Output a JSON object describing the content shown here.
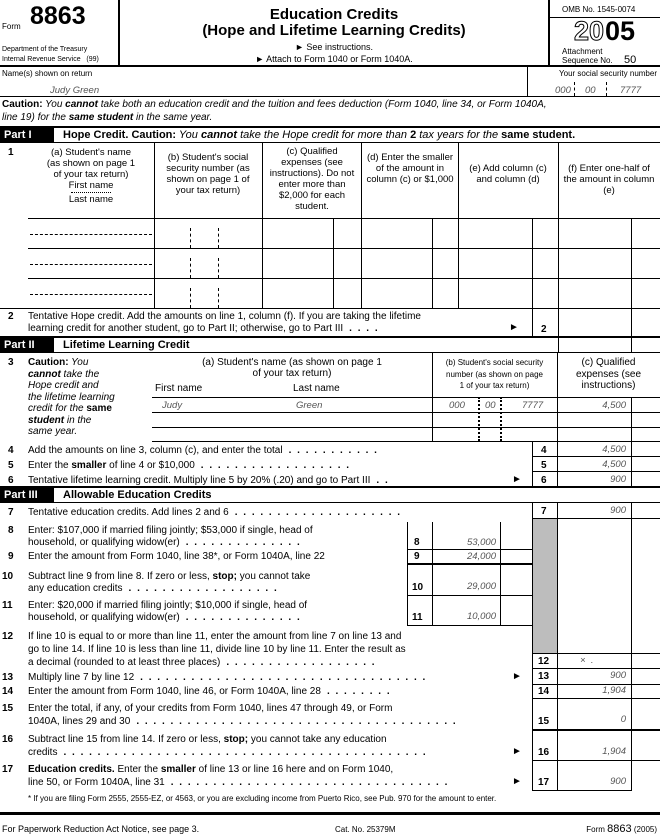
{
  "header": {
    "form_label": "Form",
    "form_number": "8863",
    "dept": "Department of the Treasury",
    "irs": "Internal Revenue Service   (99)",
    "title": "Education Credits",
    "subtitle": "(Hope and Lifetime Learning Credits)",
    "see_instructions": "► See instructions.",
    "attach": "► Attach to Form 1040 or Form 1040A.",
    "omb": "OMB No. 1545-0074",
    "year_outline": "20",
    "year_bold": "05",
    "attachment": "Attachment",
    "sequence": "Sequence No.",
    "sequence_num": "50"
  },
  "name_row": {
    "label": "Name(s) shown on return",
    "value": "Judy Green",
    "ssn_label": "Your social security number",
    "ssn": [
      "000",
      "00",
      "7777"
    ]
  },
  "caution": {
    "bold": "Caution:",
    "t1": " You ",
    "b1": "cannot",
    "t2": " take both an education credit and the tuition and fees deduction (Form 1040, line 34, or Form 1040A,",
    "t3": "line 19) for the ",
    "b2": "same student",
    "t4": " in the same year."
  },
  "part1": {
    "label": "Part I",
    "title": "Hope Credit. Caution:",
    "t1": " You ",
    "b1": "cannot",
    "t2": " take the Hope credit for more than ",
    "b2": "2",
    "t3": " tax years for the ",
    "b3": "same student."
  },
  "line1": {
    "num": "1",
    "col_a": [
      "(a) Student's name",
      "(as shown on page 1",
      "of your tax return)",
      "First name",
      "Last name"
    ],
    "col_b": "(b) Student's social security number (as shown on page 1 of your tax return)",
    "col_c": "(c) Qualified expenses (see instructions). Do not enter more than $2,000 for each student.",
    "col_d": "(d) Enter the smaller of the amount in column (c) or $1,000",
    "col_e": "(e) Add column (c) and column (d)",
    "col_f": "(f) Enter one-half of the amount in column (e)",
    "rows": [
      {},
      {},
      {}
    ]
  },
  "line2": {
    "num": "2",
    "text1": "Tentative Hope credit. Add the amounts on line 1, column (f). If you are taking the lifetime",
    "text2": "learning credit for another student, go to Part II; otherwise, go to Part III",
    "box": "2",
    "value": ""
  },
  "part2": {
    "label": "Part II",
    "title": "Lifetime Learning Credit"
  },
  "line3": {
    "num": "3",
    "caution": [
      {
        "b": "Caution:",
        "t": " You"
      },
      {
        "b": "cannot",
        "t": " take the"
      },
      {
        "b": "",
        "t": "Hope credit and"
      },
      {
        "b": "",
        "t": "the lifetime learning"
      },
      {
        "b": "",
        "t": "credit for the ",
        "b2": "same"
      },
      {
        "b": "student",
        "t": " in the"
      },
      {
        "b": "",
        "t": "same year."
      }
    ],
    "col_a1": "(a) Student's name (as shown on page 1",
    "col_a2": "of your tax return)",
    "first_name": "First name",
    "last_name": "Last name",
    "col_b": [
      "(b) Student's social security",
      "number (as shown on page",
      "1 of your tax return)"
    ],
    "col_c": [
      "(c) Qualified",
      "expenses (see",
      "instructions)"
    ],
    "rows": [
      {
        "first": "Judy",
        "last": "Green",
        "ssn": [
          "000",
          "00",
          "7777"
        ],
        "expenses": "4,500"
      },
      {
        "first": "",
        "last": "",
        "ssn": [
          "",
          "",
          ""
        ],
        "expenses": ""
      },
      {
        "first": "",
        "last": "",
        "ssn": [
          "",
          "",
          ""
        ],
        "expenses": ""
      }
    ]
  },
  "lines_4_6": [
    {
      "num": "4",
      "pre": "Add the amounts on line 3, column (c), and enter the total",
      "bold": "",
      "post": "",
      "dots": ". . . . . . . . . . .",
      "arrow": "",
      "box": "4",
      "value": "4,500"
    },
    {
      "num": "5",
      "pre": "Enter the ",
      "bold": "smaller",
      "post": " of line 4 or $10,000",
      "dots": ". . . . . . . . . . . . . . . . . .",
      "arrow": "",
      "box": "5",
      "value": "4,500"
    },
    {
      "num": "6",
      "pre": "Tentative lifetime learning credit. Multiply line 5 by 20% (.20) and go to Part III",
      "bold": "",
      "post": "",
      "dots": ". .",
      "arrow": "►",
      "box": "6",
      "value": "900"
    }
  ],
  "part3": {
    "label": "Part III",
    "title": "Allowable Education Credits"
  },
  "line7": {
    "num": "7",
    "text": "Tentative education credits. Add lines 2 and 6",
    "dots": ". . . . . . . . . . . . . . . . . . . .",
    "box": "7",
    "value": "900"
  },
  "line8": {
    "num": "8",
    "text1": "Enter: $107,000 if married filing jointly; $53,000 if single, head of",
    "text2": "household, or qualifying widow(er)",
    "dots": ". . . . . . . . . . . . . .",
    "box": "8",
    "value": "53,000"
  },
  "line9": {
    "num": "9",
    "text": "Enter the amount from Form 1040, line 38*, or Form 1040A, line 22",
    "box": "9",
    "value": "24,000"
  },
  "line10": {
    "num": "10",
    "pre": "Subtract line 9 from line 8. If zero or less, ",
    "bold": "stop;",
    "post": " you cannot take",
    "text2": "any education credits",
    "dots": ". . . . . . . . . . . . . . . . . .",
    "box": "10",
    "value": "29,000"
  },
  "line11": {
    "num": "11",
    "text1": "Enter: $20,000 if married filing jointly; $10,000 if single, head of",
    "text2": "household, or qualifying widow(er)",
    "dots": ". . . . . . . . . . . . . .",
    "box": "11",
    "value": "10,000"
  },
  "line12": {
    "num": "12",
    "text1": "If line 10 is equal to or more than line 11, enter the amount from line 7 on line 13 and",
    "text2": "go to line 14. If line 10 is less than line 11, divide line 10 by line 11. Enter the result as",
    "text3": "a decimal (rounded to at least three places)",
    "dots": ". . . . . . . . . . . . . . . . . .",
    "box": "12",
    "value": "×  ."
  },
  "line13": {
    "num": "13",
    "text": "Multiply line 7 by line 12",
    "dots": ". . . . . . . . . . . . . . . . . . . . . . . . . . . . . . . . . .",
    "arrow": "►",
    "box": "13",
    "value": "900"
  },
  "line14": {
    "num": "14",
    "text": "Enter the amount from Form 1040, line 46, or Form 1040A, line 28",
    "dots": ". . . . . . . .",
    "box": "14",
    "value": "1,904"
  },
  "line15": {
    "num": "15",
    "text1": "Enter the total, if any, of your credits from Form 1040, lines 47 through 49, or Form",
    "text2": "1040A, lines 29 and 30",
    "dots": ". . . . . . . . . . . . . . . . . . . . . . . . . . . . . . . . . . . . . .",
    "box": "15",
    "value": "0"
  },
  "line16": {
    "num": "16",
    "pre": "Subtract line 15 from line 14. If zero or less, ",
    "bold": "stop;",
    "post": " you cannot take any education",
    "text2": "credits",
    "dots": ". . . . . . . . . . . . . . . . . . . . . . . . . . . . . . . . . . . . . . . . . . .",
    "arrow": "►",
    "box": "16",
    "value": "1,904"
  },
  "line17": {
    "num": "17",
    "bold1": "Education credits.",
    "pre": " Enter the ",
    "bold2": "smaller",
    "post": " of line 13 or line 16 here and on Form 1040,",
    "text2": "line 50, or Form 1040A, line 31",
    "dots": ". . . . . . . . . . . . . . . . . . . . . . . . . . . . . . . . .",
    "arrow": "►",
    "box": "17",
    "value": "900"
  },
  "footnote": "* If you are filing Form 2555, 2555-EZ, or 4563, or you are excluding income from Puerto Rico, see Pub. 970 for the amount to enter.",
  "footer": {
    "left": "For Paperwork Reduction Act Notice, see page 3.",
    "center": "Cat. No. 25379M",
    "right_form": "Form",
    "right_num": "8863",
    "right_year": "(2005)"
  }
}
